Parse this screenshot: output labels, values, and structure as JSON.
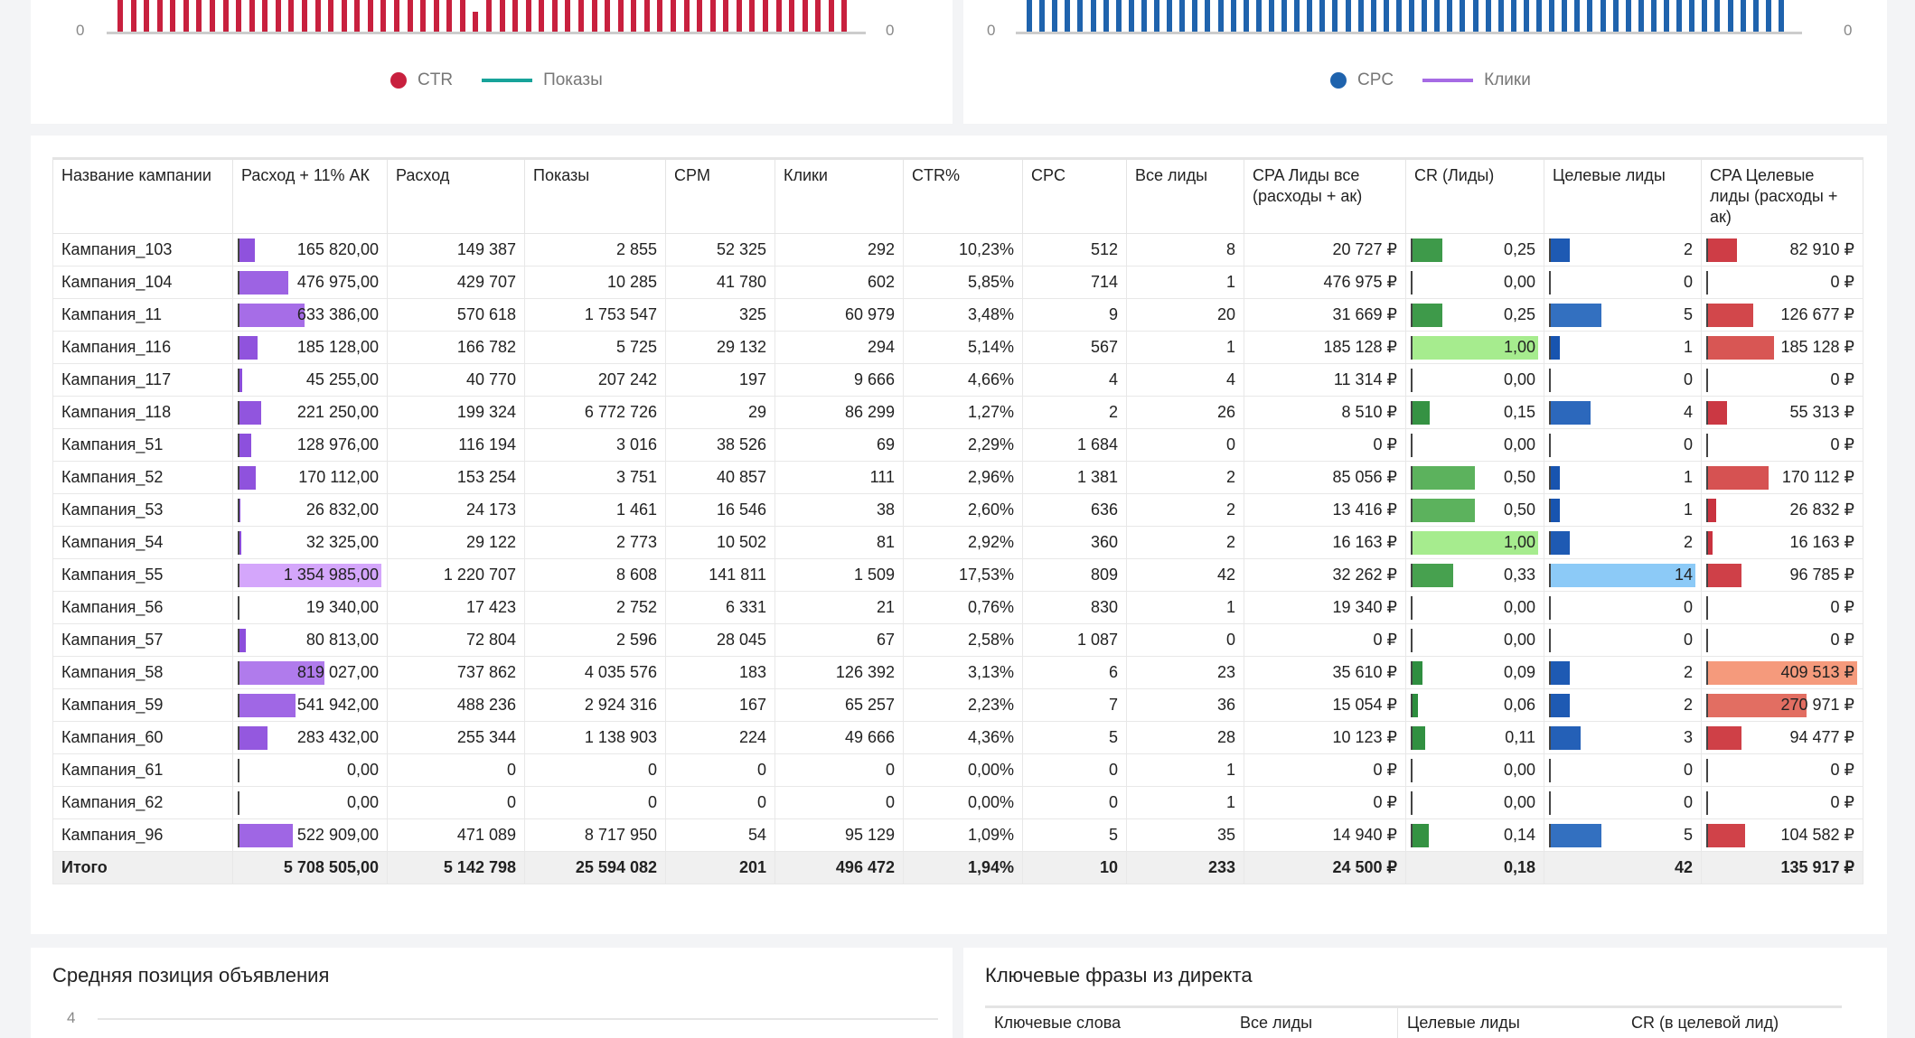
{
  "chart_left": {
    "axis_left": "0",
    "axis_right": "0",
    "legend": [
      {
        "label": "CTR",
        "color": "#c8203e",
        "kind": "dot"
      },
      {
        "label": "Показы",
        "color": "#17a39a",
        "kind": "line"
      }
    ],
    "bar_color": "#c8203e"
  },
  "chart_right": {
    "axis_left": "0",
    "axis_right": "0",
    "legend": [
      {
        "label": "CPC",
        "color": "#1f63ad",
        "kind": "dot"
      },
      {
        "label": "Клики",
        "color": "#a66be4",
        "kind": "line"
      }
    ],
    "bar_color": "#1f63ad"
  },
  "table": {
    "headers": [
      "Название кампании",
      "Расход + 11% АК",
      "Расход",
      "Показы",
      "CPM",
      "Клики",
      "CTR%",
      "CPC",
      "Все лиды",
      "CPA Лиды все (расходы + ак)",
      "CR (Лиды)",
      "Целевые лиды",
      "CPA Целевые лиды (расходы + ак)"
    ],
    "bar_columns": {
      "1": [
        "#8a4cdb",
        "#d4a6fb"
      ],
      "10": [
        "#2a8a3c",
        "#a6ec8e"
      ],
      "11": [
        "#1450ad",
        "#8ccaf7"
      ],
      "12": [
        "#c8303e",
        "#f59a7c"
      ]
    },
    "rows": [
      [
        "Кампания_103",
        "165 820,00",
        "149 387",
        "2 855",
        "52 325",
        "292",
        "10,23%",
        "512",
        "8",
        "20 727 ₽",
        "0,25",
        "2",
        "82 910 ₽"
      ],
      [
        "Кампания_104",
        "476 975,00",
        "429 707",
        "10 285",
        "41 780",
        "602",
        "5,85%",
        "714",
        "1",
        "476 975 ₽",
        "0,00",
        "0",
        "0 ₽"
      ],
      [
        "Кампания_11",
        "633 386,00",
        "570 618",
        "1 753 547",
        "325",
        "60 979",
        "3,48%",
        "9",
        "20",
        "31 669 ₽",
        "0,25",
        "5",
        "126 677 ₽"
      ],
      [
        "Кампания_116",
        "185 128,00",
        "166 782",
        "5 725",
        "29 132",
        "294",
        "5,14%",
        "567",
        "1",
        "185 128 ₽",
        "1,00",
        "1",
        "185 128 ₽"
      ],
      [
        "Кампания_117",
        "45 255,00",
        "40 770",
        "207 242",
        "197",
        "9 666",
        "4,66%",
        "4",
        "4",
        "11 314 ₽",
        "0,00",
        "0",
        "0 ₽"
      ],
      [
        "Кампания_118",
        "221 250,00",
        "199 324",
        "6 772 726",
        "29",
        "86 299",
        "1,27%",
        "2",
        "26",
        "8 510 ₽",
        "0,15",
        "4",
        "55 313 ₽"
      ],
      [
        "Кампания_51",
        "128 976,00",
        "116 194",
        "3 016",
        "38 526",
        "69",
        "2,29%",
        "1 684",
        "0",
        "0 ₽",
        "0,00",
        "0",
        "0 ₽"
      ],
      [
        "Кампания_52",
        "170 112,00",
        "153 254",
        "3 751",
        "40 857",
        "111",
        "2,96%",
        "1 381",
        "2",
        "85 056 ₽",
        "0,50",
        "1",
        "170 112 ₽"
      ],
      [
        "Кампания_53",
        "26 832,00",
        "24 173",
        "1 461",
        "16 546",
        "38",
        "2,60%",
        "636",
        "2",
        "13 416 ₽",
        "0,50",
        "1",
        "26 832 ₽"
      ],
      [
        "Кампания_54",
        "32 325,00",
        "29 122",
        "2 773",
        "10 502",
        "81",
        "2,92%",
        "360",
        "2",
        "16 163 ₽",
        "1,00",
        "2",
        "16 163 ₽"
      ],
      [
        "Кампания_55",
        "1 354 985,00",
        "1 220 707",
        "8 608",
        "141 811",
        "1 509",
        "17,53%",
        "809",
        "42",
        "32 262 ₽",
        "0,33",
        "14",
        "96 785 ₽"
      ],
      [
        "Кампания_56",
        "19 340,00",
        "17 423",
        "2 752",
        "6 331",
        "21",
        "0,76%",
        "830",
        "1",
        "19 340 ₽",
        "0,00",
        "0",
        "0 ₽"
      ],
      [
        "Кампания_57",
        "80 813,00",
        "72 804",
        "2 596",
        "28 045",
        "67",
        "2,58%",
        "1 087",
        "0",
        "0 ₽",
        "0,00",
        "0",
        "0 ₽"
      ],
      [
        "Кампания_58",
        "819 027,00",
        "737 862",
        "4 035 576",
        "183",
        "126 392",
        "3,13%",
        "6",
        "23",
        "35 610 ₽",
        "0,09",
        "2",
        "409 513 ₽"
      ],
      [
        "Кампания_59",
        "541 942,00",
        "488 236",
        "2 924 316",
        "167",
        "65 257",
        "2,23%",
        "7",
        "36",
        "15 054 ₽",
        "0,06",
        "2",
        "270 971 ₽"
      ],
      [
        "Кампания_60",
        "283 432,00",
        "255 344",
        "1 138 903",
        "224",
        "49 666",
        "4,36%",
        "5",
        "28",
        "10 123 ₽",
        "0,11",
        "3",
        "94 477 ₽"
      ],
      [
        "Кампания_61",
        "0,00",
        "0",
        "0",
        "0",
        "0",
        "0,00%",
        "0",
        "1",
        "0 ₽",
        "0,00",
        "0",
        "0 ₽"
      ],
      [
        "Кампания_62",
        "0,00",
        "0",
        "0",
        "0",
        "0",
        "0,00%",
        "0",
        "1",
        "0 ₽",
        "0,00",
        "0",
        "0 ₽"
      ],
      [
        "Кампания_96",
        "522 909,00",
        "471 089",
        "8 717 950",
        "54",
        "95 129",
        "1,09%",
        "5",
        "35",
        "14 940 ₽",
        "0,14",
        "5",
        "104 582 ₽"
      ]
    ],
    "total": [
      "Итого",
      "5 708 505,00",
      "5 142 798",
      "25 594 082",
      "201",
      "496 472",
      "1,94%",
      "10",
      "233",
      "24 500 ₽",
      "0,18",
      "42",
      "135 917 ₽"
    ]
  },
  "bottom_left": {
    "title": "Средняя позиция объявления",
    "axis_top": "4"
  },
  "bottom_right": {
    "title": "Ключевые фразы из директа",
    "headers": [
      "Ключевые слова",
      "Все лиды",
      "Целевые лиды",
      "CR (в целевой лид)"
    ]
  }
}
